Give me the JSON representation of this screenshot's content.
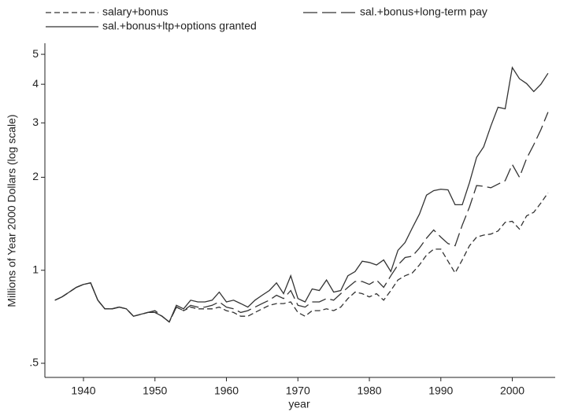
{
  "chart_data": {
    "type": "line",
    "x_label": "year",
    "y_label": "Millions of Year 2000 Dollars (log scale)",
    "log_y": true,
    "x": [
      1936,
      1937,
      1938,
      1939,
      1940,
      1941,
      1942,
      1943,
      1944,
      1945,
      1946,
      1947,
      1948,
      1949,
      1950,
      1951,
      1952,
      1953,
      1954,
      1955,
      1956,
      1957,
      1958,
      1959,
      1960,
      1961,
      1962,
      1963,
      1964,
      1965,
      1966,
      1967,
      1968,
      1969,
      1970,
      1971,
      1972,
      1973,
      1974,
      1975,
      1976,
      1977,
      1978,
      1979,
      1980,
      1981,
      1982,
      1983,
      1984,
      1985,
      1986,
      1987,
      1988,
      1989,
      1990,
      1991,
      1992,
      1993,
      1994,
      1995,
      1996,
      1997,
      1998,
      1999,
      2000,
      2001,
      2002,
      2003,
      2004,
      2005
    ],
    "xlim": [
      1934.6,
      2006
    ],
    "xticks": [
      1940,
      1950,
      1960,
      1970,
      1980,
      1990,
      2000
    ],
    "ylim": [
      0.45,
      5.43
    ],
    "yticks": [
      {
        "value": 0.5,
        "label": ".5"
      },
      1,
      2,
      3,
      4,
      5
    ],
    "series": [
      {
        "name": "salary+bonus",
        "color": "#333333",
        "dash": "7,4",
        "values": [
          0.8,
          0.82,
          0.85,
          0.88,
          0.9,
          0.91,
          0.8,
          0.75,
          0.75,
          0.76,
          0.75,
          0.71,
          0.72,
          0.73,
          0.73,
          0.71,
          0.68,
          0.76,
          0.74,
          0.76,
          0.75,
          0.75,
          0.75,
          0.76,
          0.74,
          0.73,
          0.71,
          0.71,
          0.73,
          0.75,
          0.77,
          0.78,
          0.78,
          0.79,
          0.73,
          0.71,
          0.74,
          0.74,
          0.75,
          0.74,
          0.76,
          0.81,
          0.85,
          0.84,
          0.82,
          0.84,
          0.8,
          0.86,
          0.93,
          0.96,
          0.98,
          1.04,
          1.12,
          1.17,
          1.17,
          1.07,
          0.98,
          1.08,
          1.2,
          1.28,
          1.3,
          1.31,
          1.34,
          1.43,
          1.44,
          1.36,
          1.5,
          1.54,
          1.65,
          1.78
        ]
      },
      {
        "name": "sal.+bonus+long-term pay",
        "color": "#333333",
        "dash": "18,6",
        "values": [
          0.8,
          0.82,
          0.85,
          0.88,
          0.9,
          0.91,
          0.8,
          0.75,
          0.75,
          0.76,
          0.75,
          0.71,
          0.72,
          0.73,
          0.74,
          0.71,
          0.68,
          0.76,
          0.74,
          0.77,
          0.76,
          0.76,
          0.77,
          0.79,
          0.76,
          0.75,
          0.73,
          0.74,
          0.76,
          0.78,
          0.8,
          0.83,
          0.81,
          0.86,
          0.77,
          0.76,
          0.79,
          0.79,
          0.81,
          0.8,
          0.84,
          0.88,
          0.92,
          0.92,
          0.9,
          0.93,
          0.88,
          0.96,
          1.04,
          1.1,
          1.11,
          1.18,
          1.27,
          1.35,
          1.28,
          1.22,
          1.2,
          1.4,
          1.6,
          1.88,
          1.87,
          1.85,
          1.9,
          1.95,
          2.2,
          2.0,
          2.3,
          2.55,
          2.85,
          3.25
        ]
      },
      {
        "name": "sal.+bonus+ltp+options granted",
        "color": "#333333",
        "dash": "none",
        "values": [
          0.8,
          0.82,
          0.85,
          0.88,
          0.9,
          0.91,
          0.8,
          0.75,
          0.75,
          0.76,
          0.75,
          0.71,
          0.72,
          0.73,
          0.73,
          0.71,
          0.68,
          0.77,
          0.75,
          0.8,
          0.79,
          0.79,
          0.8,
          0.85,
          0.79,
          0.8,
          0.78,
          0.76,
          0.8,
          0.83,
          0.86,
          0.91,
          0.84,
          0.96,
          0.81,
          0.79,
          0.87,
          0.86,
          0.93,
          0.85,
          0.86,
          0.96,
          0.99,
          1.07,
          1.06,
          1.04,
          1.08,
          0.99,
          1.16,
          1.23,
          1.37,
          1.52,
          1.75,
          1.81,
          1.83,
          1.82,
          1.63,
          1.63,
          1.92,
          2.32,
          2.51,
          2.93,
          3.37,
          3.33,
          4.53,
          4.17,
          4.02,
          3.79,
          4.0,
          4.34
        ]
      }
    ]
  }
}
